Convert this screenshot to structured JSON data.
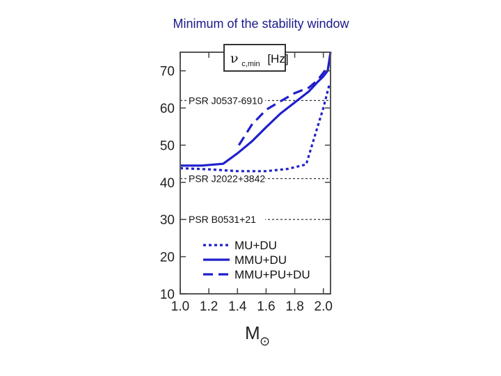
{
  "page": {
    "title": "Minimum of the stability window"
  },
  "chart_data": {
    "type": "line",
    "title": "",
    "units_box": {
      "symbol": "ν",
      "subscript": "c,min",
      "unit": "[Hz]"
    },
    "xlabel": "M",
    "xlabel_symbol": "⊙",
    "xlim": [
      1.0,
      2.05
    ],
    "ylim": [
      10,
      75
    ],
    "xticks": [
      1.0,
      1.2,
      1.4,
      1.6,
      1.8,
      2.0
    ],
    "xtick_labels": [
      "1.0",
      "1.2",
      "1.4",
      "1.6",
      "1.8",
      "2.0"
    ],
    "yticks": [
      10,
      20,
      30,
      40,
      50,
      60,
      70
    ],
    "ytick_labels": [
      "10",
      "20",
      "30",
      "40",
      "50",
      "60",
      "70"
    ],
    "color": "#1f1fcc",
    "reference_lines": [
      {
        "label": "PSR J0537-6910",
        "y": 62
      },
      {
        "label": "PSR J2022+3842",
        "y": 41
      },
      {
        "label": "PSR B0531+21",
        "y": 30
      }
    ],
    "series": [
      {
        "name": "MU+DU",
        "style": "dotted",
        "x": [
          1.0,
          1.2,
          1.4,
          1.6,
          1.75,
          1.88,
          1.96,
          2.0,
          2.04
        ],
        "y": [
          43.8,
          43.5,
          43.0,
          43.0,
          43.6,
          44.8,
          55.0,
          60.0,
          66.0
        ]
      },
      {
        "name": "MMU+DU",
        "style": "solid",
        "x": [
          1.0,
          1.15,
          1.3,
          1.4,
          1.5,
          1.6,
          1.7,
          1.8,
          1.9,
          1.96,
          2.0,
          2.03,
          2.05
        ],
        "y": [
          44.5,
          44.5,
          45.0,
          47.8,
          51.0,
          54.8,
          58.5,
          61.5,
          64.5,
          67.0,
          68.5,
          70.0,
          75.0
        ]
      },
      {
        "name": "MMU+PU+DU",
        "style": "dashed",
        "x": [
          1.41,
          1.5,
          1.6,
          1.7,
          1.8,
          1.9,
          1.96,
          2.0,
          2.04
        ],
        "y": [
          50.0,
          55.5,
          59.5,
          61.8,
          64.0,
          65.5,
          67.5,
          69.5,
          71.5
        ]
      }
    ],
    "legend": {
      "position": "bottom",
      "entries": [
        "MU+DU",
        "MMU+DU",
        "MMU+PU+DU"
      ]
    }
  }
}
